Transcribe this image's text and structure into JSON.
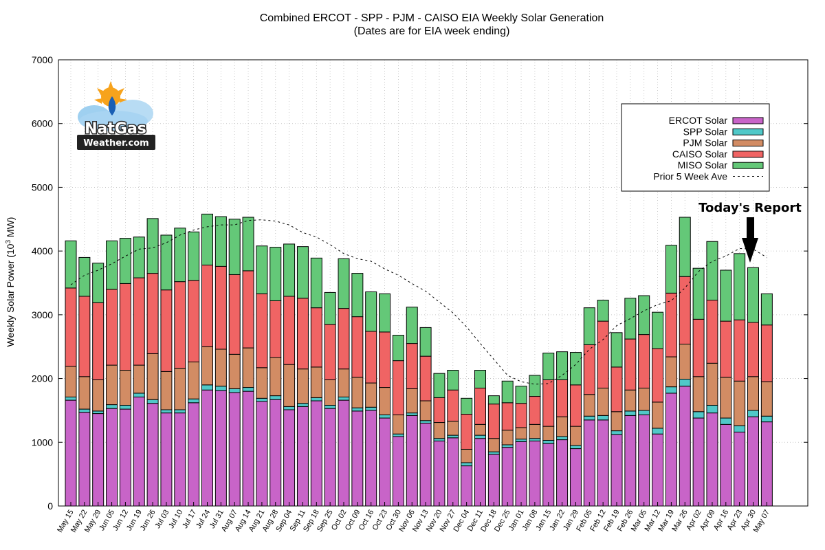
{
  "chart_data": {
    "type": "bar",
    "stacked": true,
    "title": "Combined ERCOT - SPP - PJM - CAISO EIA Weekly Solar Generation",
    "subtitle": "(Dates are for EIA week ending)",
    "ylabel_prefix": "Weekly Solar Power (10",
    "ylabel_sup": "3",
    "ylabel_suffix": " MW)",
    "ylim": [
      0,
      7000
    ],
    "yticks": [
      0,
      1000,
      2000,
      3000,
      4000,
      5000,
      6000,
      7000
    ],
    "grid": true,
    "legend_position": "top-right",
    "categories": [
      "May 15",
      "May 22",
      "May 29",
      "Jun 05",
      "Jun 12",
      "Jun 19",
      "Jun 26",
      "Jul 03",
      "Jul 10",
      "Jul 17",
      "Jul 24",
      "Jul 31",
      "Aug 07",
      "Aug 14",
      "Aug 21",
      "Aug 28",
      "Sep 04",
      "Sep 11",
      "Sep 18",
      "Sep 25",
      "Oct 02",
      "Oct 09",
      "Oct 16",
      "Oct 23",
      "Oct 30",
      "Nov 06",
      "Nov 13",
      "Nov 20",
      "Nov 27",
      "Dec 04",
      "Dec 11",
      "Dec 18",
      "Dec 25",
      "Jan 01",
      "Jan 08",
      "Jan 15",
      "Jan 22",
      "Jan 29",
      "Feb 05",
      "Feb 12",
      "Feb 19",
      "Feb 26",
      "Mar 05",
      "Mar 12",
      "Mar 19",
      "Mar 26",
      "Apr 02",
      "Apr 09",
      "Apr 16",
      "Apr 23",
      "Apr 30",
      "May 07"
    ],
    "series": [
      {
        "name": "ERCOT Solar",
        "color": "#c864c8",
        "values": [
          1660,
          1470,
          1450,
          1530,
          1520,
          1710,
          1610,
          1460,
          1460,
          1620,
          1820,
          1810,
          1780,
          1800,
          1640,
          1670,
          1510,
          1560,
          1650,
          1530,
          1660,
          1490,
          1500,
          1380,
          1090,
          1420,
          1300,
          1020,
          1070,
          630,
          1060,
          810,
          920,
          1010,
          1020,
          980,
          1040,
          900,
          1350,
          1350,
          1120,
          1420,
          1430,
          1130,
          1770,
          1880,
          1380,
          1460,
          1280,
          1160,
          1400,
          1320
        ]
      },
      {
        "name": "SPP Solar",
        "color": "#50c8c8",
        "values": [
          50,
          50,
          40,
          60,
          60,
          60,
          60,
          50,
          50,
          60,
          80,
          70,
          60,
          60,
          50,
          60,
          50,
          50,
          50,
          50,
          50,
          50,
          50,
          50,
          40,
          40,
          40,
          40,
          40,
          50,
          50,
          40,
          40,
          40,
          40,
          50,
          50,
          50,
          60,
          70,
          60,
          70,
          70,
          90,
          100,
          110,
          100,
          120,
          100,
          100,
          100,
          90
        ]
      },
      {
        "name": "PJM Solar",
        "color": "#d28c64",
        "values": [
          480,
          510,
          490,
          620,
          550,
          440,
          720,
          600,
          650,
          580,
          600,
          580,
          540,
          620,
          480,
          600,
          660,
          540,
          480,
          400,
          440,
          480,
          380,
          430,
          300,
          380,
          310,
          250,
          220,
          210,
          170,
          210,
          230,
          180,
          220,
          220,
          310,
          300,
          340,
          430,
          300,
          330,
          350,
          410,
          470,
          550,
          550,
          660,
          640,
          700,
          530,
          540
        ]
      },
      {
        "name": "CAISO Solar",
        "color": "#f06464",
        "values": [
          1230,
          1260,
          1210,
          1190,
          1360,
          1370,
          1260,
          1280,
          1360,
          1280,
          1280,
          1300,
          1250,
          1210,
          1160,
          890,
          1070,
          1110,
          930,
          870,
          950,
          950,
          810,
          870,
          850,
          710,
          700,
          390,
          490,
          550,
          570,
          540,
          430,
          380,
          440,
          730,
          580,
          650,
          780,
          1050,
          700,
          800,
          840,
          840,
          1000,
          1060,
          900,
          990,
          880,
          960,
          850,
          890
        ]
      },
      {
        "name": "MISO Solar",
        "color": "#64c878",
        "values": [
          740,
          610,
          620,
          760,
          710,
          640,
          860,
          860,
          840,
          760,
          800,
          780,
          870,
          840,
          750,
          840,
          820,
          810,
          780,
          500,
          780,
          680,
          620,
          600,
          400,
          570,
          450,
          380,
          310,
          250,
          280,
          130,
          340,
          270,
          330,
          420,
          440,
          510,
          580,
          330,
          540,
          640,
          610,
          570,
          750,
          930,
          800,
          920,
          800,
          1040,
          860,
          490
        ]
      }
    ],
    "avg_line": {
      "name": "Prior 5 Week Ave",
      "values": [
        3470,
        3620,
        3700,
        3800,
        3920,
        4030,
        4050,
        4130,
        4250,
        4330,
        4380,
        4410,
        4410,
        4480,
        4490,
        4470,
        4410,
        4290,
        4220,
        4100,
        3960,
        3880,
        3840,
        3720,
        3620,
        3490,
        3370,
        3200,
        3030,
        2810,
        2550,
        2300,
        2050,
        1950,
        1910,
        1920,
        2050,
        2220,
        2460,
        2610,
        2830,
        2940,
        3060,
        3160,
        3220,
        3420,
        3680,
        3840,
        3920,
        4040,
        4030,
        3900
      ]
    }
  },
  "annotation": {
    "label": "Today's Report",
    "target_category": "Apr 30"
  },
  "logo": {
    "line1": "NatGas",
    "line2": "Weather.com",
    "colors": {
      "cloud": "#9fd0f0",
      "sun": "#f7a31c",
      "flame": "#1a5fb4",
      "plate": "#222222"
    }
  }
}
